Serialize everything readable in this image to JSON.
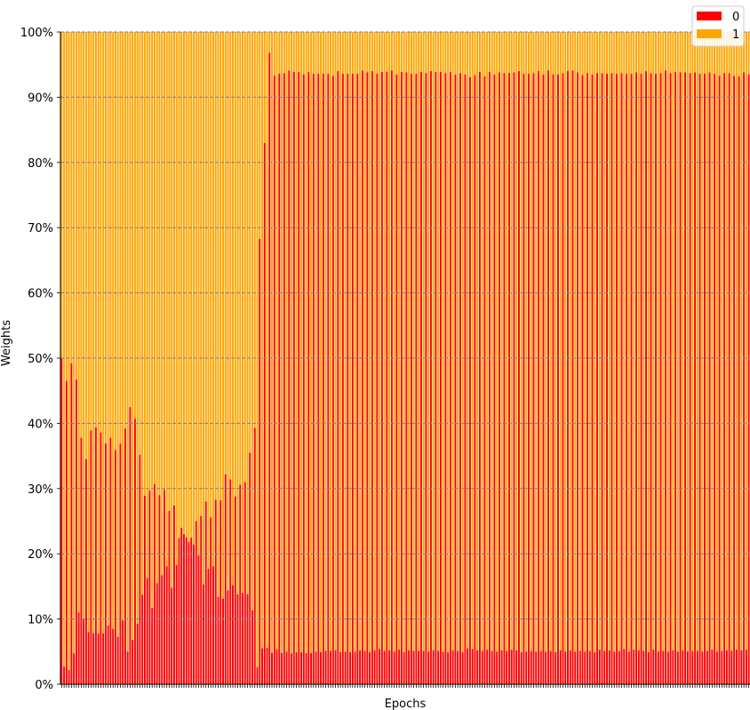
{
  "chart_data": {
    "type": "bar",
    "stacked": true,
    "normalized": true,
    "xlabel": "Epochs",
    "ylabel": "Weights",
    "ylim": [
      0,
      100
    ],
    "yticks": [
      "0%",
      "10%",
      "20%",
      "30%",
      "40%",
      "50%",
      "60%",
      "70%",
      "80%",
      "90%",
      "100%"
    ],
    "grid": "horizontal-dashed",
    "legend_position": "top-right",
    "series": [
      {
        "name": "0",
        "color": "#ff0000"
      },
      {
        "name": "1",
        "color": "#ffa500"
      }
    ],
    "series0_percent": [
      50,
      2.7,
      46.5,
      2.2,
      49.2,
      4.7,
      46.7,
      11,
      37.8,
      10,
      34.5,
      8,
      38.9,
      7.8,
      39.4,
      7.8,
      38.6,
      7.8,
      36.9,
      9,
      37.8,
      8.5,
      35.9,
      7.3,
      36.9,
      9.8,
      39.2,
      5,
      42.5,
      6.8,
      40.7,
      9.3,
      35.2,
      13.7,
      28.9,
      16.3,
      29.7,
      11.7,
      30.7,
      15.5,
      29.0,
      16.7,
      29.8,
      18.1,
      26.6,
      14.8,
      27.4,
      18.3,
      22.4,
      24,
      23,
      22.5,
      21.8,
      22.5,
      21.4,
      25,
      19.8,
      25.8,
      15.3,
      28,
      17.7,
      25.6,
      18.1,
      28.3,
      13.4,
      28.2,
      13.1,
      32.2,
      14.4,
      31.4,
      15.2,
      28.8,
      13.8,
      30.6,
      14,
      31,
      13.8,
      35.5,
      11.3,
      39.3,
      2.6,
      68.3,
      5.5,
      83,
      5.6,
      96.8,
      4.8,
      93.3,
      5.4,
      93.6,
      4.8,
      93.7,
      5,
      94.1,
      4.7,
      93.9,
      4.9,
      93.9,
      4.9,
      93.5,
      4.8,
      93.9,
      4.8,
      93.6,
      5,
      93.6,
      4.9,
      93.6,
      5.1,
      93.6,
      5.1,
      93.3,
      5.2,
      94,
      4.9,
      93.6,
      5,
      93.6,
      4.9,
      93.6,
      5,
      93.6,
      5.2,
      94.1,
      5.1,
      93.8,
      4.9,
      94,
      5.2,
      93.6,
      5.4,
      93.9,
      5.1,
      93.9,
      5.2,
      94.1,
      5,
      93.5,
      5.3,
      93.9,
      4.9,
      93.8,
      5.2,
      93.6,
      5.1,
      93.6,
      5.1,
      93.9,
      5.1,
      93.7,
      5,
      94,
      5.2,
      93.9,
      5.1,
      93.9,
      5,
      93.7,
      4.9,
      93.9,
      5.2,
      93.5,
      5.1,
      93.7,
      4.9,
      93.5,
      5.5,
      93.1,
      5.4,
      93.4,
      5.2,
      93.9,
      5.1,
      93.2,
      5.3,
      93.9,
      5.1,
      93.5,
      5,
      93.8,
      5.2,
      93.7,
      5.1,
      93.7,
      5.3,
      93.8,
      5.2,
      94,
      4.9,
      93.6,
      5,
      93.6,
      5.1,
      93.7,
      5,
      94,
      5.1,
      93.5,
      5,
      94.1,
      5.1,
      93.5,
      4.9,
      93.5,
      5.2,
      93.7,
      5,
      94,
      5.2,
      94.1,
      5,
      93.8,
      5.1,
      93.4,
      5,
      93.7,
      5.1,
      93.5,
      4.9,
      93.7,
      5.3,
      93.7,
      5.1,
      93.6,
      5.2,
      93.7,
      5,
      93.6,
      5.1,
      93.7,
      5.4,
      93.6,
      5,
      93.6,
      5.3,
      93.8,
      5.2,
      93.6,
      5.1,
      94,
      4.9,
      93.7,
      5.3,
      93.6,
      5,
      93.7,
      5.1,
      94.1,
      5,
      93.7,
      5.2,
      93.9,
      5,
      93.8,
      5.2,
      93.8,
      5,
      93.7,
      5.1,
      93.8,
      5.1,
      93.6,
      5,
      93.6,
      5.1,
      93.8,
      5.3,
      93.6,
      5,
      93.3,
      5.1,
      93.7,
      5.2,
      93.7,
      5.1,
      93.3,
      5.3,
      93.2,
      5.2,
      93.8,
      5.3,
      93.5
    ]
  }
}
